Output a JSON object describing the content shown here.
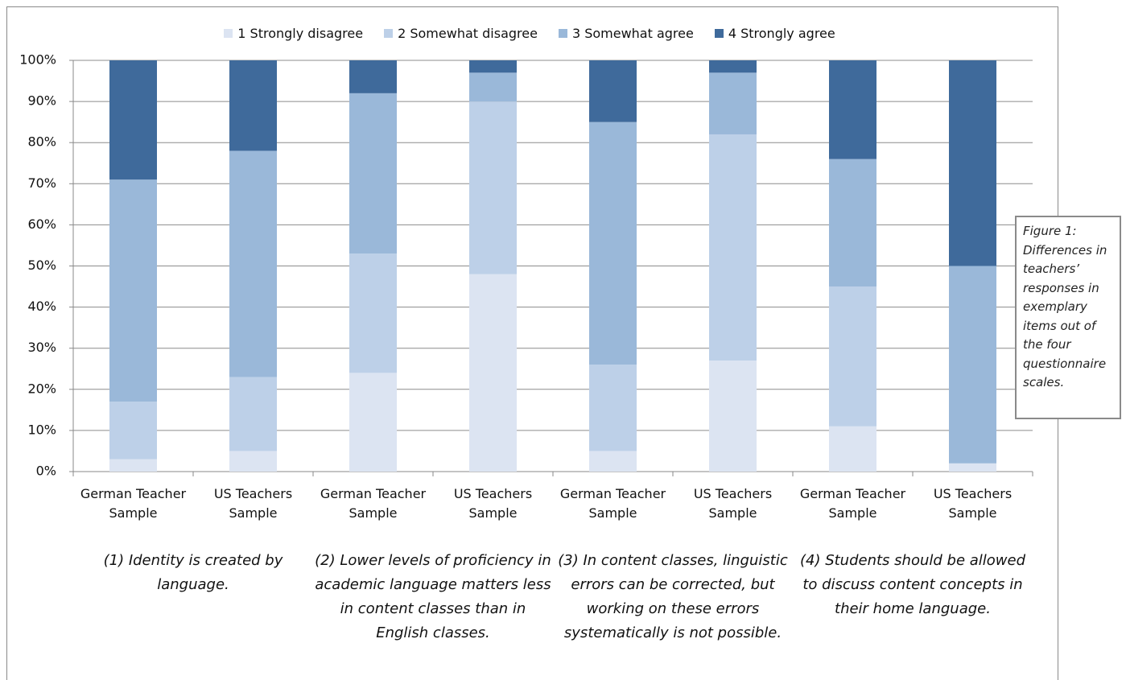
{
  "chart_data": {
    "type": "stacked_bar",
    "categories": [
      "German Teacher Sample",
      "US Teachers Sample",
      "German Teacher Sample",
      "US Teachers Sample",
      "German Teacher Sample",
      "US Teachers Sample",
      "German Teacher Sample",
      "US Teachers Sample"
    ],
    "groups": [
      "(1) Identity is created by language.",
      "(2) Lower levels of proficiency in academic language matters less in content classes than in English classes.",
      "(3) In content classes, linguistic errors can be corrected, but working on these errors systematically is not possible.",
      "(4) Students should be allowed to discuss content concepts in their home language."
    ],
    "series": [
      {
        "name": "1 Strongly disagree",
        "color": "#dce4f2",
        "values": [
          3,
          5,
          24,
          48,
          5,
          27,
          11,
          2
        ]
      },
      {
        "name": "2 Somewhat disagree",
        "color": "#bdd0e8",
        "values": [
          14,
          18,
          29,
          42,
          21,
          55,
          34,
          0
        ]
      },
      {
        "name": "3 Somewhat agree",
        "color": "#9ab8d9",
        "values": [
          54,
          55,
          39,
          7,
          59,
          15,
          31,
          48
        ]
      },
      {
        "name": "4 Strongly agree",
        "color": "#3f6a9b",
        "values": [
          29,
          22,
          8,
          3,
          15,
          3,
          24,
          50
        ]
      }
    ],
    "ylim": [
      0,
      100
    ],
    "yticks": [
      {
        "value": 0,
        "label": "0%"
      },
      {
        "value": 10,
        "label": "10%"
      },
      {
        "value": 20,
        "label": "20%"
      },
      {
        "value": 30,
        "label": "30%"
      },
      {
        "value": 40,
        "label": "40%"
      },
      {
        "value": 50,
        "label": "50%"
      },
      {
        "value": 60,
        "label": "60%"
      },
      {
        "value": 70,
        "label": "70%"
      },
      {
        "value": 80,
        "label": "80%"
      },
      {
        "value": 90,
        "label": "90%"
      },
      {
        "value": 100,
        "label": "100%"
      }
    ],
    "grid": true,
    "legend": "top",
    "annotation": "Figure 1: Differences in teachers’ responses in exemplary items out of the four questionnaire scales."
  }
}
